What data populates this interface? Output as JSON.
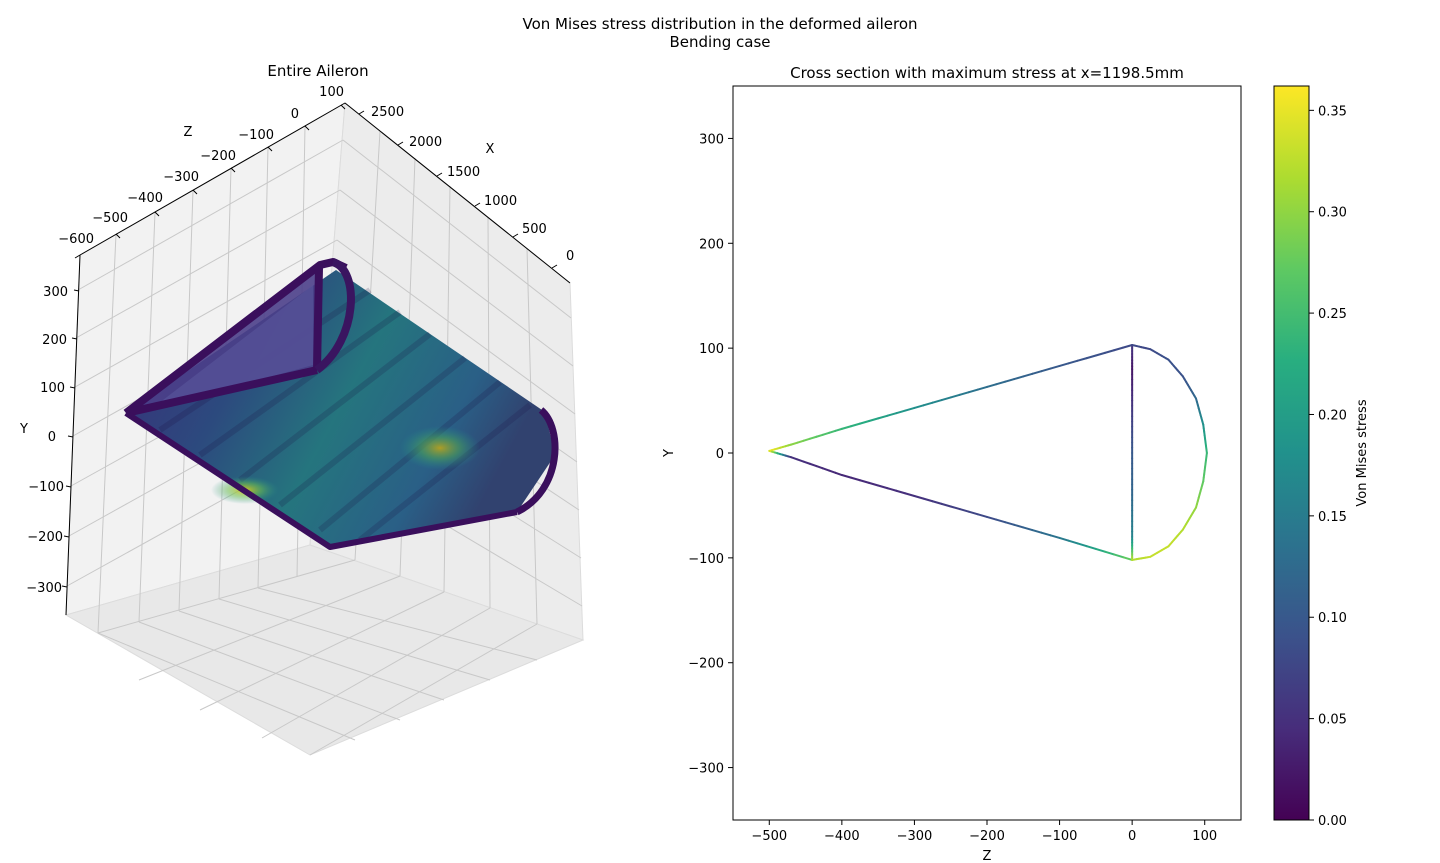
{
  "figure": {
    "title_line1": "Von Mises stress distribution in the deformed aileron",
    "title_line2": "Bending case"
  },
  "colormap": {
    "name": "viridis",
    "stops": [
      "#440154",
      "#472d7b",
      "#3b528b",
      "#2c728e",
      "#21918c",
      "#28ae80",
      "#5ec962",
      "#addc30",
      "#fde725"
    ]
  },
  "chart_data": [
    {
      "type": "surface3d",
      "title": "Entire Aileron",
      "xlabel": "Z",
      "ylabel": "X",
      "zlabel": "Y",
      "z_ticks": [
        "−600",
        "−500",
        "−400",
        "−300",
        "−200",
        "−100",
        "0",
        "100"
      ],
      "x_ticks": [
        "2500",
        "2000",
        "1500",
        "1000",
        "500",
        "0"
      ],
      "y_ticks": [
        "300",
        "200",
        "100",
        "0",
        "−100",
        "−200",
        "−300"
      ],
      "grid": true,
      "pane_color": "#f2f2f2"
    },
    {
      "type": "line",
      "title": "Cross section with maximum stress at x=1198.5mm",
      "xlabel": "Z",
      "ylabel": "Y",
      "xlim": [
        -550,
        150
      ],
      "ylim": [
        -350,
        350
      ],
      "x_ticks": [
        -500,
        -400,
        -300,
        -200,
        -100,
        0,
        100
      ],
      "y_ticks": [
        -300,
        -200,
        -100,
        0,
        100,
        200,
        300
      ],
      "tick_labels_x": [
        "−500",
        "−400",
        "−300",
        "−200",
        "−100",
        "0",
        "100"
      ],
      "tick_labels_y": [
        "−300",
        "−200",
        "−100",
        "0",
        "100",
        "200",
        "300"
      ],
      "series": [
        {
          "part": "upper-skin",
          "points": [
            [
              -500,
              2
            ],
            [
              -470,
              8
            ],
            [
              -400,
              23
            ],
            [
              -300,
              43
            ],
            [
              -200,
              63
            ],
            [
              -100,
              83
            ],
            [
              0,
              103
            ]
          ],
          "stress": [
            0.36,
            0.3,
            0.24,
            0.18,
            0.13,
            0.1,
            0.08
          ]
        },
        {
          "part": "lower-skin",
          "points": [
            [
              -500,
              2
            ],
            [
              -470,
              -4
            ],
            [
              -400,
              -21
            ],
            [
              -300,
              -41
            ],
            [
              -200,
              -61
            ],
            [
              -100,
              -81
            ],
            [
              0,
              -102
            ]
          ],
          "stress": [
            0.36,
            0.05,
            0.04,
            0.05,
            0.08,
            0.14,
            0.28
          ]
        },
        {
          "part": "spar",
          "points": [
            [
              0,
              103
            ],
            [
              0,
              80
            ],
            [
              0,
              40
            ],
            [
              0,
              0
            ],
            [
              0,
              -40
            ],
            [
              0,
              -80
            ],
            [
              0,
              -102
            ]
          ],
          "stress": [
            0.06,
            0.02,
            0.06,
            0.1,
            0.12,
            0.16,
            0.32
          ]
        },
        {
          "part": "leading-edge",
          "points": [
            [
              0,
              103
            ],
            [
              25,
              99
            ],
            [
              50,
              89
            ],
            [
              70,
              73
            ],
            [
              88,
              52
            ],
            [
              98,
              27
            ],
            [
              103,
              0
            ],
            [
              98,
              -27
            ],
            [
              88,
              -52
            ],
            [
              70,
              -73
            ],
            [
              50,
              -89
            ],
            [
              25,
              -99
            ],
            [
              0,
              -102
            ]
          ],
          "stress": [
            0.08,
            0.08,
            0.09,
            0.09,
            0.12,
            0.18,
            0.24,
            0.27,
            0.3,
            0.32,
            0.33,
            0.33,
            0.32
          ]
        }
      ]
    },
    {
      "type": "colorbar",
      "label": "Von Mises stress",
      "ylim": [
        0,
        0.362
      ],
      "ticks": [
        0.0,
        0.05,
        0.1,
        0.15,
        0.2,
        0.25,
        0.3,
        0.35
      ],
      "tick_labels": [
        "0.00",
        "0.05",
        "0.10",
        "0.15",
        "0.20",
        "0.25",
        "0.30",
        "0.35"
      ]
    }
  ]
}
